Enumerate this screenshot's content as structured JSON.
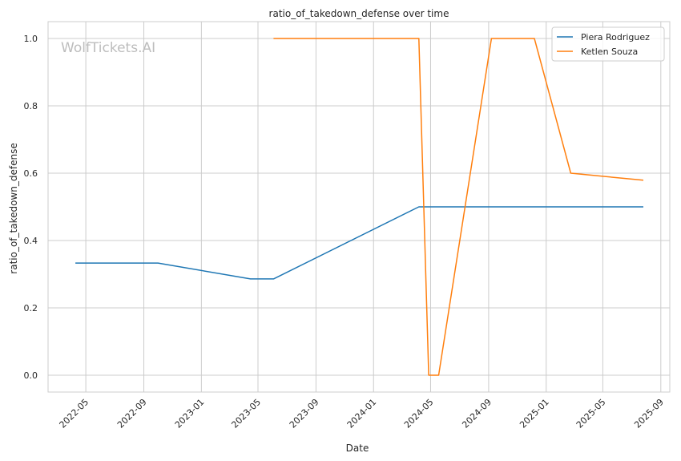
{
  "chart_data": {
    "type": "line",
    "title": "ratio_of_takedown_defense over time",
    "xlabel": "Date",
    "ylabel": "ratio_of_takedown_defense",
    "watermark": "WolfTickets.AI",
    "xlim": [
      "2022-02-10",
      "2025-09-20"
    ],
    "ylim": [
      -0.05,
      1.05
    ],
    "x_ticks": [
      "2022-05-01",
      "2022-09-01",
      "2023-01-01",
      "2023-05-01",
      "2023-09-01",
      "2024-01-01",
      "2024-05-01",
      "2024-09-01",
      "2025-01-01",
      "2025-05-01",
      "2025-09-01"
    ],
    "x_tick_labels": [
      "2022-05",
      "2022-09",
      "2023-01",
      "2023-05",
      "2023-09",
      "2024-01",
      "2024-05",
      "2024-09",
      "2025-01",
      "2025-05",
      "2025-09"
    ],
    "y_ticks": [
      0.0,
      0.2,
      0.4,
      0.6,
      0.8,
      1.0
    ],
    "y_tick_labels": [
      "0.0",
      "0.2",
      "0.4",
      "0.6",
      "0.8",
      "1.0"
    ],
    "grid": true,
    "legend_position": "top-right",
    "series": [
      {
        "name": "Piera Rodriguez",
        "color": "#1f77b4",
        "points": [
          [
            "2022-04-09",
            0.333
          ],
          [
            "2022-10-01",
            0.333
          ],
          [
            "2023-04-15",
            0.286
          ],
          [
            "2023-06-03",
            0.286
          ],
          [
            "2024-04-06",
            0.5
          ],
          [
            "2025-07-26",
            0.5
          ]
        ]
      },
      {
        "name": "Ketlen Souza",
        "color": "#ff7f0e",
        "points": [
          [
            "2023-06-03",
            1.0
          ],
          [
            "2024-04-06",
            1.0
          ],
          [
            "2024-04-27",
            0.0
          ],
          [
            "2024-05-18",
            0.0
          ],
          [
            "2024-09-07",
            1.0
          ],
          [
            "2024-12-07",
            1.0
          ],
          [
            "2025-02-22",
            0.6
          ],
          [
            "2025-07-26",
            0.579
          ]
        ]
      }
    ]
  }
}
